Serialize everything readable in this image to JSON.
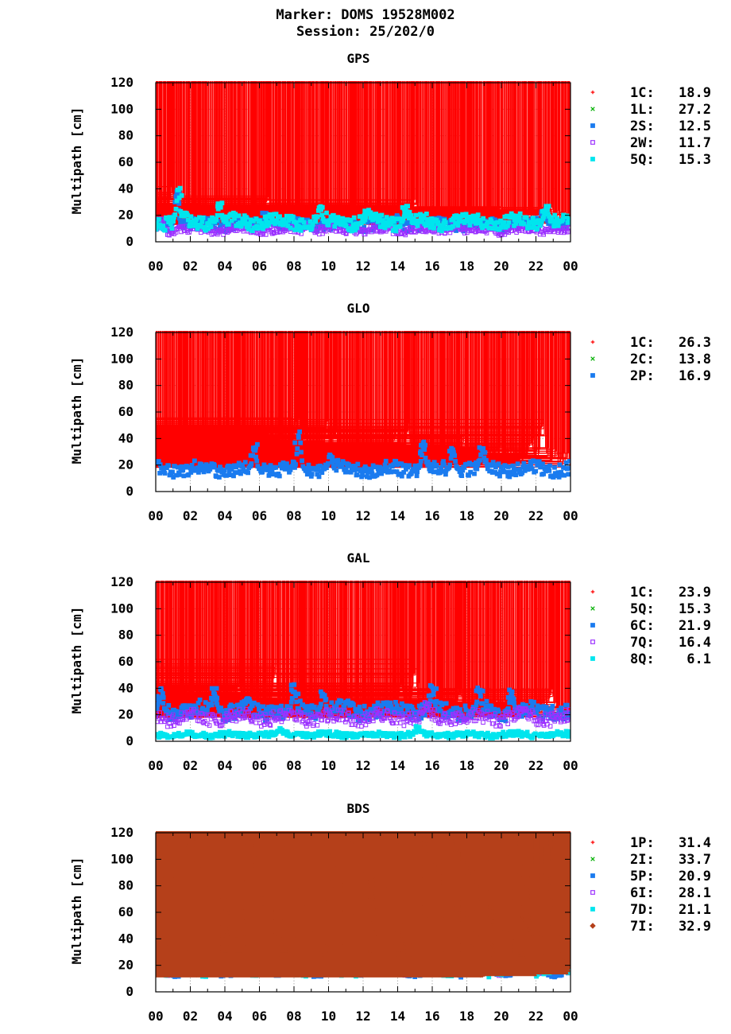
{
  "header": {
    "marker": "Marker: DOMS 19528M002",
    "session": "Session: 25/202/0"
  },
  "chart_data": [
    {
      "type": "scatter",
      "title": "GPS",
      "ylabel": "Multipath [cm]",
      "xlabel": "",
      "xlim": [
        0,
        24
      ],
      "ylim": [
        0,
        120
      ],
      "xticks": [
        "00",
        "02",
        "04",
        "06",
        "08",
        "10",
        "12",
        "14",
        "16",
        "18",
        "20",
        "22",
        "00"
      ],
      "yticks": [
        "0",
        "20",
        "40",
        "60",
        "80",
        "100",
        "120"
      ],
      "grid": true,
      "legend_position": "right",
      "series": [
        {
          "name": "1C:",
          "value": "18.9",
          "color": "#ff0000",
          "marker": "plus",
          "base": 20,
          "noise": 5,
          "peaks": [
            [
              0.9,
              42
            ],
            [
              2.3,
              30
            ],
            [
              6.5,
              35
            ],
            [
              11.6,
              28
            ],
            [
              15.0,
              32
            ]
          ]
        },
        {
          "name": "1L:",
          "value": "27.2",
          "color": "#00b000",
          "marker": "x",
          "base": 24,
          "noise": 7,
          "peaks": [
            [
              0.4,
              55
            ],
            [
              0.9,
              65
            ],
            [
              2.8,
              52
            ],
            [
              5.6,
              60
            ],
            [
              6.4,
              118
            ],
            [
              6.7,
              100
            ],
            [
              8.2,
              84
            ],
            [
              8.3,
              65
            ],
            [
              10.6,
              50
            ],
            [
              14.7,
              65
            ],
            [
              15.6,
              48
            ],
            [
              16.5,
              45
            ],
            [
              17.7,
              75
            ],
            [
              18.9,
              45
            ],
            [
              19.9,
              62
            ],
            [
              21.6,
              70
            ],
            [
              23.6,
              65
            ]
          ]
        },
        {
          "name": "2S:",
          "value": "12.5",
          "color": "#1a7bef",
          "marker": "square",
          "base": 13,
          "noise": 4,
          "peaks": [
            [
              1.2,
              40
            ],
            [
              6.4,
              22
            ],
            [
              14.0,
              20
            ],
            [
              22.5,
              24
            ]
          ]
        },
        {
          "name": "2W:",
          "value": "11.7",
          "color": "#9b30ff",
          "marker": "opensquare",
          "base": 9,
          "noise": 3,
          "peaks": [
            [
              0.3,
              18
            ],
            [
              8.8,
              14
            ],
            [
              17.4,
              14
            ]
          ]
        },
        {
          "name": "5Q:",
          "value": "15.3",
          "color": "#00e5ee",
          "marker": "square",
          "base": 15,
          "noise": 5,
          "peaks": [
            [
              1.3,
              44
            ],
            [
              3.7,
              30
            ],
            [
              9.5,
              28
            ],
            [
              12.3,
              25
            ],
            [
              14.5,
              27
            ],
            [
              22.6,
              28
            ]
          ]
        }
      ]
    },
    {
      "type": "scatter",
      "title": "GLO",
      "ylabel": "Multipath [cm]",
      "xlabel": "",
      "xlim": [
        0,
        24
      ],
      "ylim": [
        0,
        120
      ],
      "xticks": [
        "00",
        "02",
        "04",
        "06",
        "08",
        "10",
        "12",
        "14",
        "16",
        "18",
        "20",
        "22",
        "00"
      ],
      "yticks": [
        "0",
        "20",
        "40",
        "60",
        "80",
        "100",
        "120"
      ],
      "grid": true,
      "legend_position": "right",
      "series": [
        {
          "name": "1C:",
          "value": "26.3",
          "color": "#ff0000",
          "marker": "plus",
          "base": 26,
          "noise": 6,
          "peaks": [
            [
              1.6,
              42
            ],
            [
              4.8,
              54
            ],
            [
              6.4,
              52
            ],
            [
              7.2,
              42
            ],
            [
              8.1,
              56
            ],
            [
              8.6,
              46
            ],
            [
              9.9,
              54
            ],
            [
              10.4,
              48
            ],
            [
              13.9,
              46
            ],
            [
              14.6,
              52
            ],
            [
              17.8,
              42
            ],
            [
              21.7,
              40
            ],
            [
              22.4,
              58
            ]
          ]
        },
        {
          "name": "2C:",
          "value": "13.8",
          "color": "#00b000",
          "marker": "x",
          "base": 13,
          "noise": 4,
          "peaks": [
            [
              3.6,
              24
            ],
            [
              11.2,
              24
            ],
            [
              19.3,
              24
            ]
          ]
        },
        {
          "name": "2P:",
          "value": "16.9",
          "color": "#1a7bef",
          "marker": "square",
          "base": 17,
          "noise": 5,
          "peaks": [
            [
              5.7,
              36
            ],
            [
              8.3,
              48
            ],
            [
              10.1,
              30
            ],
            [
              15.5,
              38
            ],
            [
              17.2,
              34
            ],
            [
              18.9,
              34
            ]
          ]
        }
      ]
    },
    {
      "type": "scatter",
      "title": "GAL",
      "ylabel": "Multipath [cm]",
      "xlabel": "",
      "xlim": [
        0,
        24
      ],
      "ylim": [
        0,
        120
      ],
      "xticks": [
        "00",
        "02",
        "04",
        "06",
        "08",
        "10",
        "12",
        "14",
        "16",
        "18",
        "20",
        "22",
        "00"
      ],
      "yticks": [
        "0",
        "20",
        "40",
        "60",
        "80",
        "100",
        "120"
      ],
      "grid": true,
      "legend_position": "right",
      "series": [
        {
          "name": "1C:",
          "value": "23.9",
          "color": "#ff0000",
          "marker": "plus",
          "base": 25,
          "noise": 5,
          "peaks": [
            [
              1.9,
              40
            ],
            [
              4.8,
              46
            ],
            [
              6.9,
              60
            ],
            [
              14.2,
              44
            ],
            [
              15.0,
              62
            ],
            [
              17.6,
              40
            ],
            [
              22.9,
              40
            ]
          ]
        },
        {
          "name": "5Q:",
          "value": "15.3",
          "color": "#00b000",
          "marker": "x",
          "base": 15,
          "noise": 4,
          "peaks": [
            [
              5.9,
              22
            ],
            [
              13.4,
              22
            ]
          ]
        },
        {
          "name": "6C:",
          "value": "21.9",
          "color": "#1a7bef",
          "marker": "square",
          "base": 23,
          "noise": 6,
          "peaks": [
            [
              0.3,
              40
            ],
            [
              3.4,
              40
            ],
            [
              5.3,
              34
            ],
            [
              8.0,
              43
            ],
            [
              9.7,
              40
            ],
            [
              16.0,
              43
            ],
            [
              18.7,
              42
            ],
            [
              20.6,
              39
            ]
          ]
        },
        {
          "name": "7Q:",
          "value": "16.4",
          "color": "#9b30ff",
          "marker": "opensquare",
          "base": 18,
          "noise": 5,
          "peaks": [
            [
              15.6,
              30
            ],
            [
              21.2,
              26
            ]
          ]
        },
        {
          "name": "8Q:",
          "value": "6.1",
          "color": "#00e5ee",
          "marker": "square",
          "base": 5,
          "noise": 2,
          "peaks": [
            [
              15.2,
              12
            ],
            [
              7.2,
              10
            ]
          ]
        }
      ]
    },
    {
      "type": "scatter",
      "title": "BDS",
      "ylabel": "Multipath [cm]",
      "xlabel": "",
      "xlim": [
        0,
        24
      ],
      "ylim": [
        0,
        120
      ],
      "xticks": [
        "00",
        "02",
        "04",
        "06",
        "08",
        "10",
        "12",
        "14",
        "16",
        "18",
        "20",
        "22",
        "00"
      ],
      "yticks": [
        "0",
        "20",
        "40",
        "60",
        "80",
        "100",
        "120"
      ],
      "grid": true,
      "legend_position": "right",
      "series": [
        {
          "name": "1P:",
          "value": "31.4",
          "color": "#ff0000",
          "marker": "plus",
          "base": 22,
          "noise": 7,
          "peaks": [
            [
              1.9,
              68
            ],
            [
              4.6,
              70
            ],
            [
              7.4,
              82
            ],
            [
              9.7,
              88
            ],
            [
              12.5,
              78
            ],
            [
              15.0,
              96
            ],
            [
              17.9,
              62
            ],
            [
              21.4,
              82
            ]
          ]
        },
        {
          "name": "2I:",
          "value": "33.7",
          "color": "#00b000",
          "marker": "x",
          "base": 24,
          "noise": 8,
          "peaks": [
            [
              1.0,
              52
            ],
            [
              3.6,
              60
            ],
            [
              4.9,
              76
            ],
            [
              8.0,
              98
            ],
            [
              10.2,
              58
            ],
            [
              12.8,
              60
            ],
            [
              14.9,
              68
            ],
            [
              18.5,
              50
            ],
            [
              20.3,
              52
            ],
            [
              21.8,
              75
            ]
          ]
        },
        {
          "name": "5P:",
          "value": "20.9",
          "color": "#1a7bef",
          "marker": "square",
          "base": 18,
          "noise": 5,
          "peaks": [
            [
              5.9,
              66
            ],
            [
              12.4,
              40
            ],
            [
              14.2,
              52
            ],
            [
              17.2,
              30
            ]
          ]
        },
        {
          "name": "6I:",
          "value": "28.1",
          "color": "#9b30ff",
          "marker": "opensquare",
          "base": 22,
          "noise": 7,
          "peaks": [
            [
              4.8,
              90
            ],
            [
              7.6,
              112
            ],
            [
              11.8,
              84
            ],
            [
              13.9,
              68
            ],
            [
              14.9,
              102
            ],
            [
              15.5,
              62
            ]
          ]
        },
        {
          "name": "7D:",
          "value": "21.1",
          "color": "#00e5ee",
          "marker": "square",
          "base": 18,
          "noise": 5,
          "peaks": [
            [
              6.4,
              68
            ],
            [
              12.7,
              106
            ],
            [
              13.7,
              82
            ],
            [
              14.4,
              76
            ],
            [
              21.3,
              82
            ]
          ]
        },
        {
          "name": "7I:",
          "value": "32.9",
          "color": "#b5401a",
          "marker": "diamond",
          "base": 18,
          "noise": 5,
          "peaks": [
            [
              4.1,
              118
            ],
            [
              4.8,
              118
            ],
            [
              5.1,
              110
            ],
            [
              7.4,
              100
            ],
            [
              7.8,
              116
            ],
            [
              9.8,
              118
            ],
            [
              12.6,
              110
            ],
            [
              14.3,
              108
            ],
            [
              14.9,
              118
            ],
            [
              19.5,
              90
            ],
            [
              21.2,
              114
            ],
            [
              21.6,
              96
            ],
            [
              23.4,
              55
            ]
          ]
        }
      ]
    }
  ]
}
